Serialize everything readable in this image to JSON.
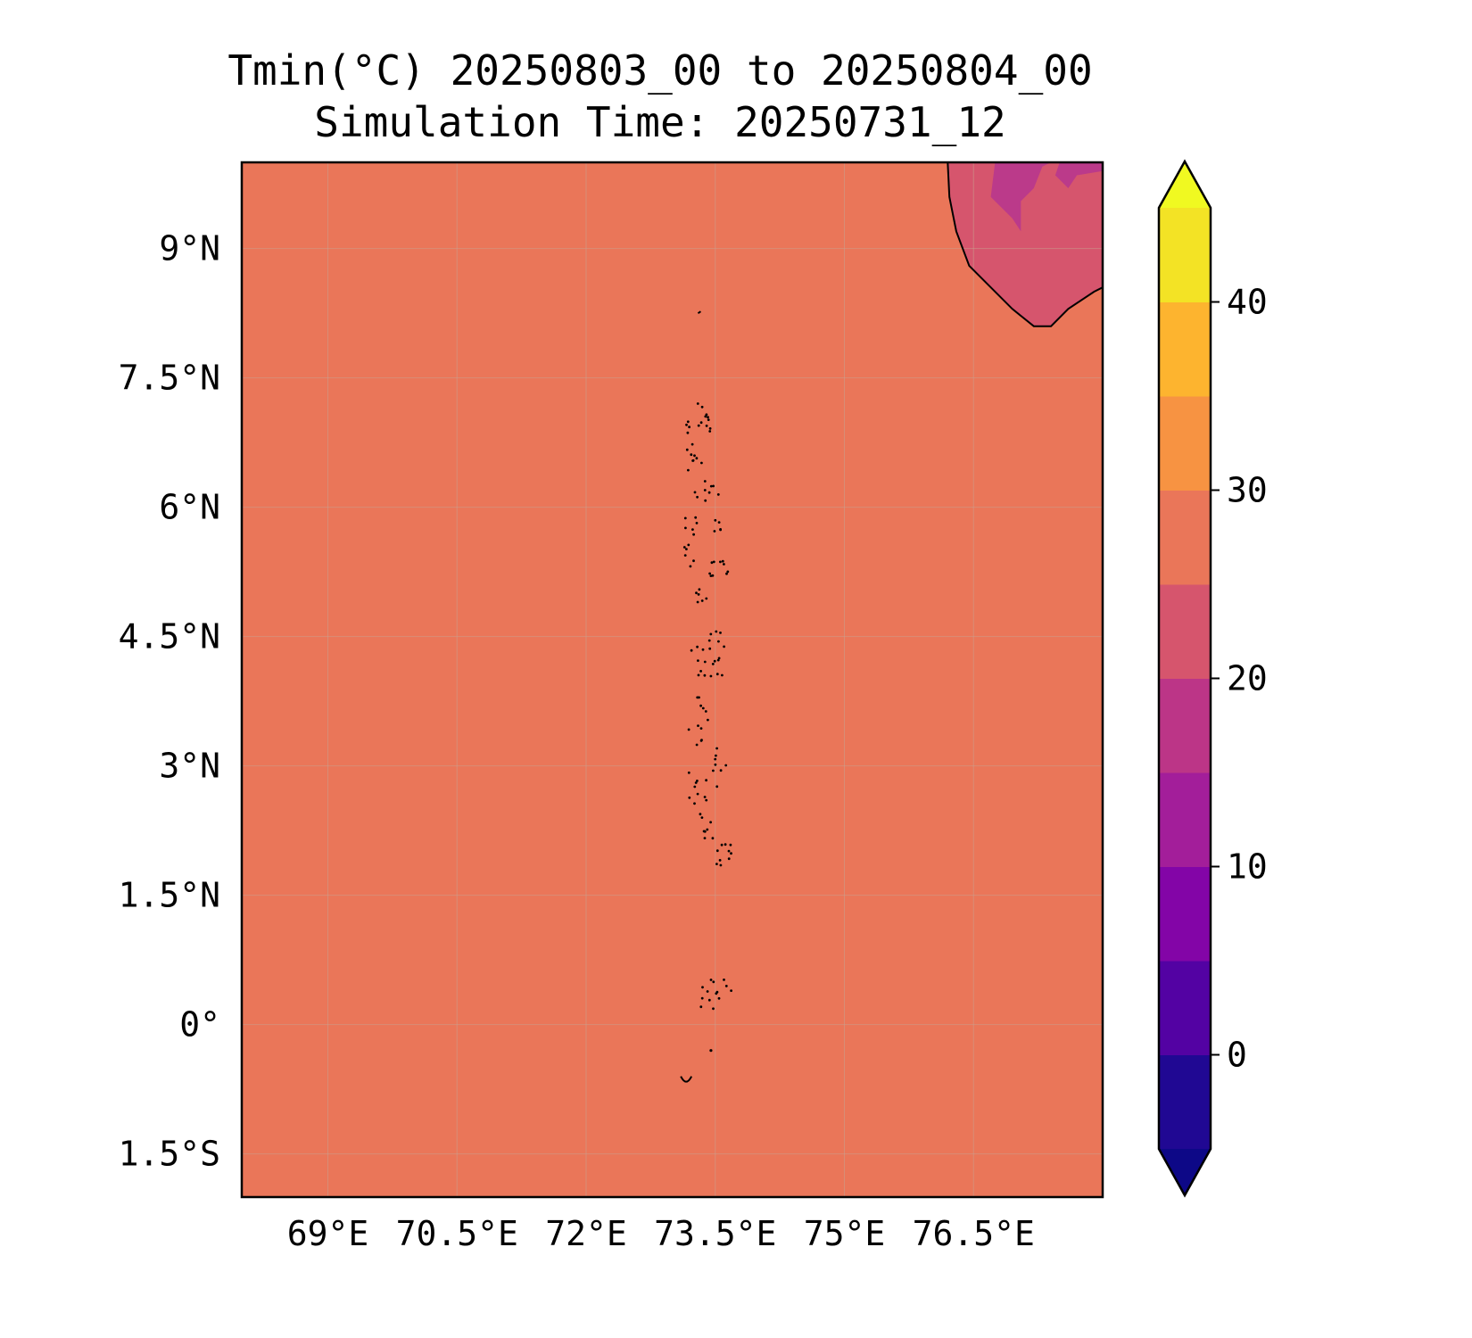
{
  "title": {
    "line1": "Tmin(°C) 20250803_00 to 20250804_00",
    "line2": "Simulation Time: 20250731_12"
  },
  "map": {
    "lon_range": [
      68.0,
      78.0
    ],
    "lat_range": [
      -2.0,
      10.0
    ],
    "x_ticks": [
      {
        "value": 69.0,
        "label": "69°E"
      },
      {
        "value": 70.5,
        "label": "70.5°E"
      },
      {
        "value": 72.0,
        "label": "72°E"
      },
      {
        "value": 73.5,
        "label": "73.5°E"
      },
      {
        "value": 75.0,
        "label": "75°E"
      },
      {
        "value": 76.5,
        "label": "76.5°E"
      }
    ],
    "y_ticks": [
      {
        "value": 9.0,
        "label": "9°N"
      },
      {
        "value": 7.5,
        "label": "7.5°N"
      },
      {
        "value": 6.0,
        "label": "6°N"
      },
      {
        "value": 4.5,
        "label": "4.5°N"
      },
      {
        "value": 3.0,
        "label": "3°N"
      },
      {
        "value": 1.5,
        "label": "1.5°N"
      },
      {
        "value": 0.0,
        "label": "0°"
      },
      {
        "value": -1.5,
        "label": "1.5°S"
      }
    ],
    "field_value_ocean": 27,
    "colors": {
      "ocean": "#ea7659",
      "land_20_25": "#d6556d",
      "land_15_20": "#bb3a8a",
      "coastline": "#000000",
      "grid": "#c9a08f"
    }
  },
  "colorbar": {
    "levels": [
      -5,
      0,
      5,
      10,
      15,
      20,
      25,
      30,
      35,
      40,
      45
    ],
    "colors": [
      "#200893",
      "#5302a3",
      "#8305a7",
      "#a31e9a",
      "#bc3587",
      "#d6556d",
      "#ea7659",
      "#f79342",
      "#fdb42f",
      "#f3e325"
    ],
    "under_color": "#0d0887",
    "over_color": "#f0f921",
    "ticks": [
      {
        "value": 0,
        "label": "0"
      },
      {
        "value": 10,
        "label": "10"
      },
      {
        "value": 20,
        "label": "20"
      },
      {
        "value": 30,
        "label": "30"
      },
      {
        "value": 40,
        "label": "40"
      }
    ]
  }
}
